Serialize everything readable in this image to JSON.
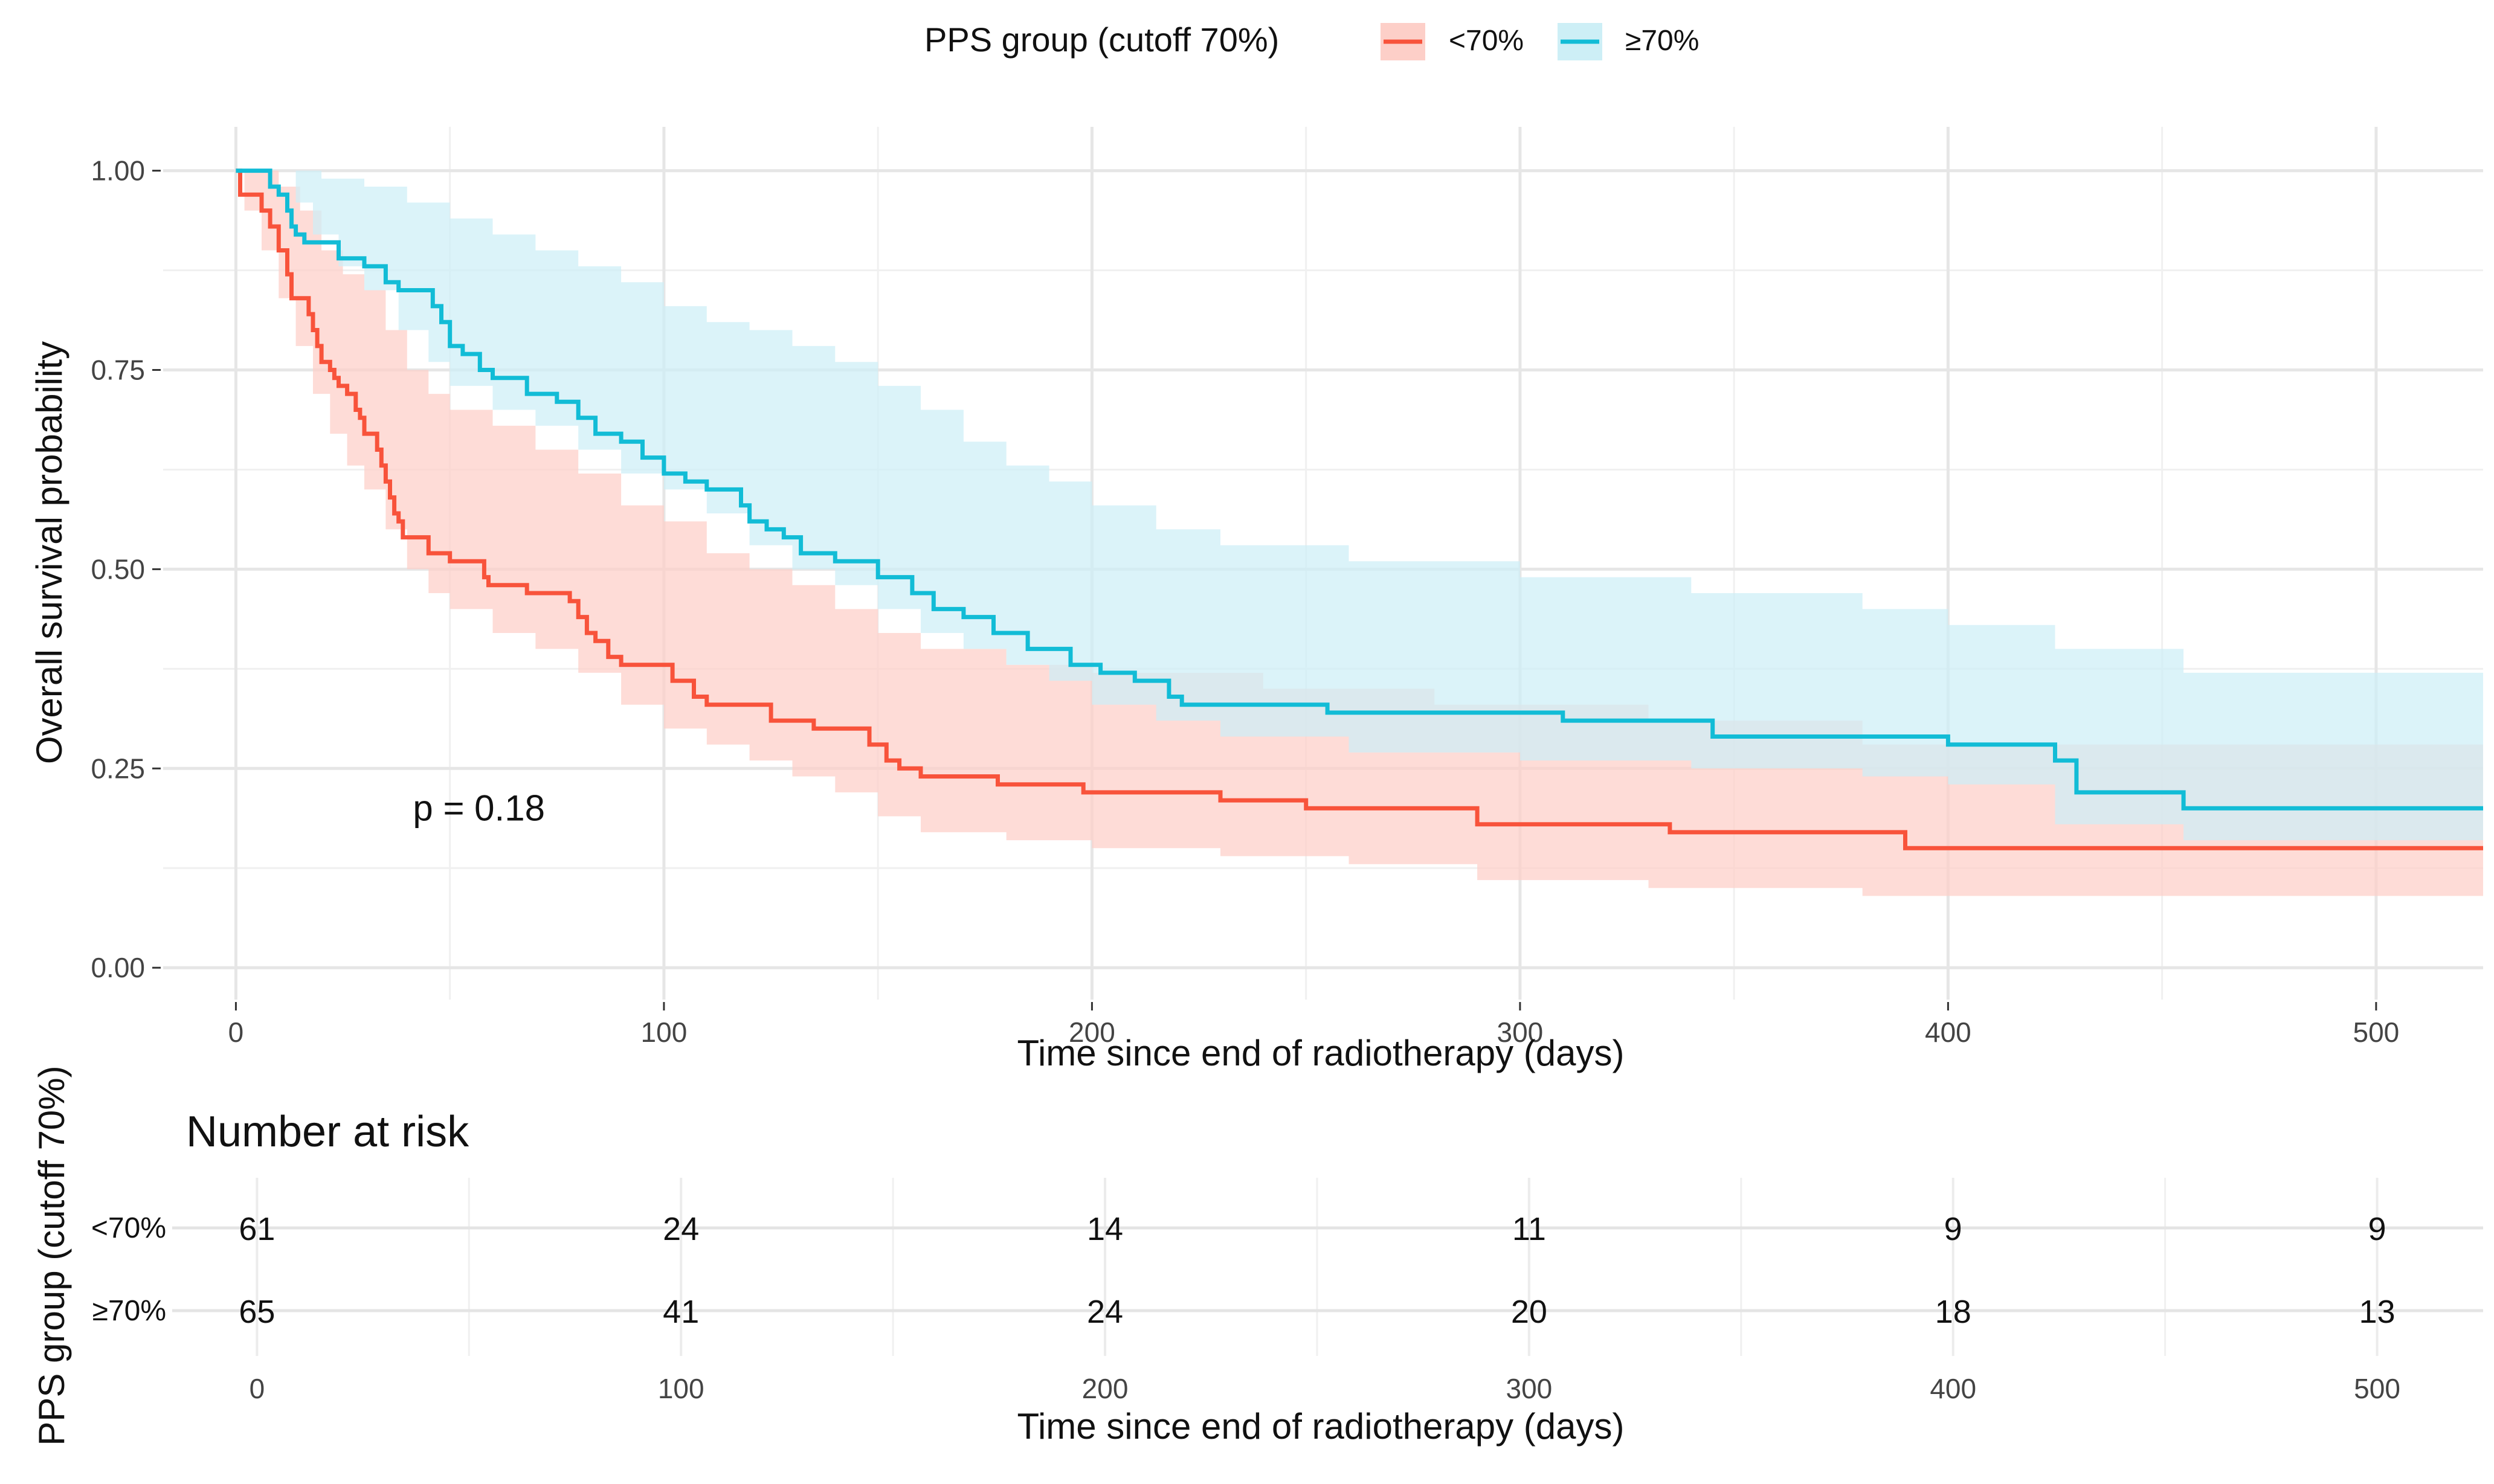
{
  "chart_data": [
    {
      "type": "line",
      "subtype": "kaplan-meier step curves with confidence bands",
      "title": "",
      "legend": {
        "title": "PPS group (cutoff 70%)",
        "placement": "top-center",
        "entries": [
          {
            "label": "<70%",
            "color": "#F8533B"
          },
          {
            "label": "≥70%",
            "color": "#12BCD6"
          }
        ]
      },
      "xlabel": "Time since end of radiotherapy (days)",
      "ylabel": "Overall survival probability",
      "xlim": [
        -17,
        525
      ],
      "ylim": [
        -0.04,
        1.055
      ],
      "x_ticks": [
        0,
        100,
        200,
        300,
        400,
        500
      ],
      "x_tick_labels": [
        "0",
        "100",
        "200",
        "300",
        "400",
        "500"
      ],
      "y_ticks": [
        0,
        0.25,
        0.5,
        0.75,
        1.0
      ],
      "y_tick_labels": [
        "0.00",
        "0.25",
        "0.50",
        "0.75",
        "1.00"
      ],
      "annotation": "p = 0.18",
      "annotation_position": {
        "x": 47,
        "y": 0.2
      },
      "series": [
        {
          "name": "<70%",
          "color": "#F8533B",
          "band_color": "#FDCFC8",
          "points": [
            [
              0,
              1.0
            ],
            [
              1,
              0.97
            ],
            [
              6,
              0.95
            ],
            [
              8,
              0.93
            ],
            [
              10,
              0.9
            ],
            [
              12,
              0.87
            ],
            [
              13,
              0.84
            ],
            [
              17,
              0.82
            ],
            [
              18,
              0.8
            ],
            [
              19,
              0.78
            ],
            [
              20,
              0.76
            ],
            [
              22,
              0.75
            ],
            [
              23,
              0.74
            ],
            [
              24,
              0.73
            ],
            [
              26,
              0.72
            ],
            [
              28,
              0.7
            ],
            [
              29,
              0.69
            ],
            [
              30,
              0.67
            ],
            [
              33,
              0.65
            ],
            [
              34,
              0.63
            ],
            [
              35,
              0.61
            ],
            [
              36,
              0.59
            ],
            [
              37,
              0.57
            ],
            [
              38,
              0.56
            ],
            [
              39,
              0.54
            ],
            [
              40,
              0.54
            ],
            [
              45,
              0.52
            ],
            [
              50,
              0.51
            ],
            [
              58,
              0.49
            ],
            [
              59,
              0.48
            ],
            [
              68,
              0.47
            ],
            [
              78,
              0.46
            ],
            [
              80,
              0.44
            ],
            [
              82,
              0.42
            ],
            [
              84,
              0.41
            ],
            [
              87,
              0.39
            ],
            [
              90,
              0.38
            ],
            [
              96,
              0.38
            ],
            [
              102,
              0.36
            ],
            [
              107,
              0.34
            ],
            [
              110,
              0.33
            ],
            [
              120,
              0.33
            ],
            [
              125,
              0.31
            ],
            [
              135,
              0.3
            ],
            [
              148,
              0.28
            ],
            [
              152,
              0.26
            ],
            [
              155,
              0.25
            ],
            [
              160,
              0.24
            ],
            [
              178,
              0.23
            ],
            [
              198,
              0.22
            ],
            [
              217,
              0.22
            ],
            [
              230,
              0.21
            ],
            [
              250,
              0.2
            ],
            [
              290,
              0.18
            ],
            [
              335,
              0.17
            ],
            [
              390,
              0.15
            ],
            [
              525,
              0.15
            ]
          ],
          "ci_upper": [
            [
              0,
              1.0
            ],
            [
              5,
              1.0
            ],
            [
              10,
              0.98
            ],
            [
              15,
              0.95
            ],
            [
              20,
              0.9
            ],
            [
              25,
              0.87
            ],
            [
              30,
              0.85
            ],
            [
              35,
              0.8
            ],
            [
              40,
              0.75
            ],
            [
              45,
              0.72
            ],
            [
              50,
              0.7
            ],
            [
              60,
              0.68
            ],
            [
              70,
              0.65
            ],
            [
              80,
              0.62
            ],
            [
              90,
              0.58
            ],
            [
              100,
              0.56
            ],
            [
              110,
              0.52
            ],
            [
              120,
              0.5
            ],
            [
              130,
              0.48
            ],
            [
              140,
              0.45
            ],
            [
              150,
              0.42
            ],
            [
              160,
              0.4
            ],
            [
              180,
              0.38
            ],
            [
              200,
              0.37
            ],
            [
              240,
              0.35
            ],
            [
              280,
              0.33
            ],
            [
              330,
              0.31
            ],
            [
              380,
              0.28
            ],
            [
              525,
              0.27
            ]
          ],
          "ci_lower": [
            [
              0,
              1.0
            ],
            [
              2,
              0.95
            ],
            [
              6,
              0.9
            ],
            [
              10,
              0.84
            ],
            [
              14,
              0.78
            ],
            [
              18,
              0.72
            ],
            [
              22,
              0.67
            ],
            [
              26,
              0.63
            ],
            [
              30,
              0.6
            ],
            [
              35,
              0.55
            ],
            [
              40,
              0.5
            ],
            [
              45,
              0.47
            ],
            [
              50,
              0.45
            ],
            [
              60,
              0.42
            ],
            [
              70,
              0.4
            ],
            [
              80,
              0.37
            ],
            [
              90,
              0.33
            ],
            [
              100,
              0.3
            ],
            [
              110,
              0.28
            ],
            [
              120,
              0.26
            ],
            [
              130,
              0.24
            ],
            [
              140,
              0.22
            ],
            [
              150,
              0.19
            ],
            [
              160,
              0.17
            ],
            [
              180,
              0.16
            ],
            [
              200,
              0.15
            ],
            [
              230,
              0.14
            ],
            [
              260,
              0.13
            ],
            [
              290,
              0.11
            ],
            [
              330,
              0.1
            ],
            [
              380,
              0.09
            ],
            [
              525,
              0.08
            ]
          ]
        },
        {
          "name": "≥70%",
          "color": "#12BCD6",
          "band_color": "#CDEFF6",
          "points": [
            [
              0,
              1.0
            ],
            [
              6,
              1.0
            ],
            [
              8,
              0.98
            ],
            [
              10,
              0.97
            ],
            [
              12,
              0.95
            ],
            [
              13,
              0.93
            ],
            [
              14,
              0.92
            ],
            [
              16,
              0.91
            ],
            [
              22,
              0.91
            ],
            [
              24,
              0.89
            ],
            [
              30,
              0.88
            ],
            [
              35,
              0.86
            ],
            [
              38,
              0.85
            ],
            [
              46,
              0.83
            ],
            [
              48,
              0.81
            ],
            [
              50,
              0.78
            ],
            [
              53,
              0.77
            ],
            [
              57,
              0.75
            ],
            [
              60,
              0.74
            ],
            [
              68,
              0.72
            ],
            [
              75,
              0.71
            ],
            [
              80,
              0.69
            ],
            [
              84,
              0.67
            ],
            [
              90,
              0.66
            ],
            [
              95,
              0.64
            ],
            [
              100,
              0.62
            ],
            [
              105,
              0.61
            ],
            [
              110,
              0.6
            ],
            [
              118,
              0.58
            ],
            [
              120,
              0.56
            ],
            [
              124,
              0.55
            ],
            [
              128,
              0.54
            ],
            [
              132,
              0.52
            ],
            [
              140,
              0.51
            ],
            [
              150,
              0.49
            ],
            [
              158,
              0.47
            ],
            [
              163,
              0.45
            ],
            [
              170,
              0.44
            ],
            [
              177,
              0.42
            ],
            [
              185,
              0.4
            ],
            [
              195,
              0.38
            ],
            [
              202,
              0.37
            ],
            [
              210,
              0.36
            ],
            [
              218,
              0.34
            ],
            [
              221,
              0.33
            ],
            [
              255,
              0.32
            ],
            [
              310,
              0.31
            ],
            [
              345,
              0.29
            ],
            [
              400,
              0.28
            ],
            [
              425,
              0.26
            ],
            [
              430,
              0.22
            ],
            [
              455,
              0.2
            ],
            [
              525,
              0.2
            ]
          ],
          "ci_upper": [
            [
              0,
              1.0
            ],
            [
              10,
              1.0
            ],
            [
              20,
              0.99
            ],
            [
              30,
              0.98
            ],
            [
              40,
              0.96
            ],
            [
              50,
              0.94
            ],
            [
              60,
              0.92
            ],
            [
              70,
              0.9
            ],
            [
              80,
              0.88
            ],
            [
              90,
              0.86
            ],
            [
              100,
              0.83
            ],
            [
              110,
              0.81
            ],
            [
              120,
              0.8
            ],
            [
              130,
              0.78
            ],
            [
              140,
              0.76
            ],
            [
              150,
              0.73
            ],
            [
              160,
              0.7
            ],
            [
              170,
              0.66
            ],
            [
              180,
              0.63
            ],
            [
              190,
              0.61
            ],
            [
              200,
              0.58
            ],
            [
              215,
              0.55
            ],
            [
              230,
              0.53
            ],
            [
              260,
              0.51
            ],
            [
              300,
              0.49
            ],
            [
              340,
              0.47
            ],
            [
              380,
              0.45
            ],
            [
              400,
              0.43
            ],
            [
              425,
              0.4
            ],
            [
              455,
              0.37
            ],
            [
              525,
              0.34
            ]
          ],
          "ci_lower": [
            [
              0,
              1.0
            ],
            [
              10,
              1.0
            ],
            [
              14,
              0.96
            ],
            [
              18,
              0.92
            ],
            [
              24,
              0.88
            ],
            [
              30,
              0.85
            ],
            [
              38,
              0.8
            ],
            [
              45,
              0.76
            ],
            [
              50,
              0.73
            ],
            [
              60,
              0.7
            ],
            [
              70,
              0.68
            ],
            [
              80,
              0.65
            ],
            [
              90,
              0.62
            ],
            [
              100,
              0.6
            ],
            [
              110,
              0.57
            ],
            [
              120,
              0.53
            ],
            [
              130,
              0.5
            ],
            [
              140,
              0.48
            ],
            [
              150,
              0.45
            ],
            [
              160,
              0.42
            ],
            [
              170,
              0.4
            ],
            [
              180,
              0.38
            ],
            [
              190,
              0.36
            ],
            [
              200,
              0.33
            ],
            [
              215,
              0.31
            ],
            [
              230,
              0.29
            ],
            [
              260,
              0.27
            ],
            [
              300,
              0.26
            ],
            [
              340,
              0.25
            ],
            [
              380,
              0.24
            ],
            [
              400,
              0.23
            ],
            [
              425,
              0.18
            ],
            [
              455,
              0.16
            ],
            [
              525,
              0.13
            ]
          ]
        }
      ]
    },
    {
      "type": "table",
      "title": "Number at risk",
      "ylabel": "PPS group (cutoff 70%)",
      "xlabel": "Time since end of radiotherapy (days)",
      "xlim": [
        -20,
        525
      ],
      "x_ticks": [
        0,
        100,
        200,
        300,
        400,
        500
      ],
      "x_tick_labels": [
        "0",
        "100",
        "200",
        "300",
        "400",
        "500"
      ],
      "rows": [
        {
          "label": "<70%",
          "color": "#F8533B",
          "values": [
            "61",
            "24",
            "14",
            "11",
            "9",
            "9"
          ]
        },
        {
          "label": "≥70%",
          "color": "#12BCD6",
          "values": [
            "65",
            "41",
            "24",
            "20",
            "18",
            "13"
          ]
        }
      ]
    }
  ]
}
